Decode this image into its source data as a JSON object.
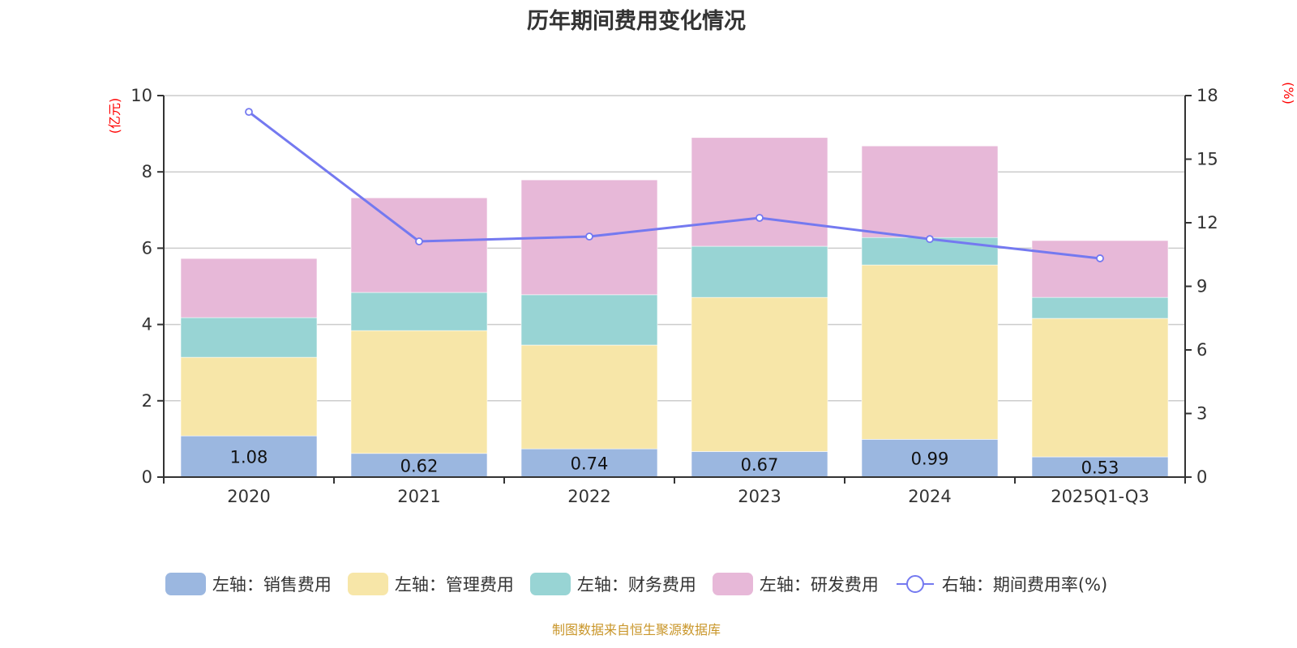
{
  "chart_data": {
    "type": "bar",
    "stacked": true,
    "title": "历年期间费用变化情况",
    "categories": [
      "2020",
      "2021",
      "2022",
      "2023",
      "2024",
      "2025Q1-Q3"
    ],
    "left_axis": {
      "label": "(亿元)",
      "range": [
        0,
        10
      ],
      "ticks": [
        0,
        2,
        4,
        6,
        8,
        10
      ]
    },
    "right_axis": {
      "label": "(%)",
      "range": [
        0,
        18
      ],
      "ticks": [
        0,
        3,
        6,
        9,
        12,
        15,
        18
      ]
    },
    "grid": true,
    "legend_position": "bottom",
    "series": [
      {
        "name": "左轴：销售费用",
        "axis": "left",
        "type": "bar",
        "color": "#9bb7e0",
        "values": [
          1.08,
          0.62,
          0.74,
          0.67,
          0.99,
          0.53
        ],
        "show_labels": true
      },
      {
        "name": "左轴：管理费用",
        "axis": "left",
        "type": "bar",
        "color": "#f7e6a8",
        "values": [
          2.06,
          3.22,
          2.72,
          4.04,
          4.57,
          3.63
        ]
      },
      {
        "name": "左轴：财务费用",
        "axis": "left",
        "type": "bar",
        "color": "#98d4d4",
        "values": [
          1.04,
          1.0,
          1.32,
          1.34,
          0.72,
          0.55
        ]
      },
      {
        "name": "左轴：研发费用",
        "axis": "left",
        "type": "bar",
        "color": "#e7b8d8",
        "values": [
          1.55,
          2.48,
          3.01,
          2.85,
          2.4,
          1.49
        ]
      },
      {
        "name": "右轴：期间费用率(%)",
        "axis": "right",
        "type": "line",
        "color": "#7479f0",
        "values": [
          17.23,
          11.12,
          11.35,
          12.23,
          11.23,
          10.32
        ]
      }
    ]
  },
  "footer": {
    "source": "制图数据来自恒生聚源数据库"
  }
}
